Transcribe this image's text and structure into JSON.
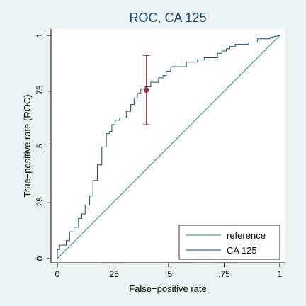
{
  "chart_data": {
    "type": "line",
    "title": "ROC, CA 125",
    "xlabel": "False−positive rate",
    "ylabel": "True−positive rate (ROC)",
    "xlim": [
      0,
      1
    ],
    "ylim": [
      0,
      1
    ],
    "x_ticks": [
      {
        "value": 0,
        "label": "0"
      },
      {
        "value": 0.25,
        "label": ".25"
      },
      {
        "value": 0.5,
        "label": ".5"
      },
      {
        "value": 0.75,
        "label": ".75"
      },
      {
        "value": 1,
        "label": "1"
      }
    ],
    "y_ticks": [
      {
        "value": 0,
        "label": "0"
      },
      {
        "value": 0.25,
        "label": ".25"
      },
      {
        "value": 0.5,
        "label": ".5"
      },
      {
        "value": 0.75,
        "label": ".75"
      },
      {
        "value": 1,
        "label": "1"
      }
    ],
    "grid": false,
    "legend_position": "bottom-right",
    "colors": {
      "background": "#eaf2f3",
      "plot_background": "#ffffff",
      "reference": "#2d8a6e",
      "roc": "#1a476f",
      "marker": "#90353b"
    },
    "series": [
      {
        "name": "reference",
        "x": [
          0,
          1
        ],
        "y": [
          0,
          1
        ]
      },
      {
        "name": "CA 125",
        "x": [
          0,
          0,
          0.01,
          0.01,
          0.04,
          0.04,
          0.055,
          0.055,
          0.075,
          0.075,
          0.095,
          0.095,
          0.11,
          0.11,
          0.125,
          0.125,
          0.145,
          0.145,
          0.16,
          0.16,
          0.18,
          0.18,
          0.2,
          0.2,
          0.22,
          0.22,
          0.235,
          0.235,
          0.245,
          0.245,
          0.26,
          0.26,
          0.28,
          0.28,
          0.31,
          0.31,
          0.33,
          0.33,
          0.345,
          0.345,
          0.36,
          0.36,
          0.375,
          0.375,
          0.395,
          0.395,
          0.42,
          0.42,
          0.455,
          0.455,
          0.475,
          0.475,
          0.49,
          0.49,
          0.51,
          0.51,
          0.58,
          0.58,
          0.63,
          0.63,
          0.66,
          0.66,
          0.72,
          0.72,
          0.74,
          0.74,
          0.76,
          0.76,
          0.775,
          0.775,
          0.8,
          0.8,
          0.86,
          0.86,
          0.9,
          0.9,
          0.955,
          0.955,
          1
        ],
        "y": [
          0,
          0.04,
          0.04,
          0.06,
          0.06,
          0.08,
          0.08,
          0.12,
          0.12,
          0.14,
          0.14,
          0.18,
          0.18,
          0.2,
          0.2,
          0.24,
          0.24,
          0.28,
          0.28,
          0.35,
          0.35,
          0.42,
          0.42,
          0.5,
          0.5,
          0.56,
          0.56,
          0.57,
          0.57,
          0.6,
          0.6,
          0.62,
          0.62,
          0.63,
          0.63,
          0.66,
          0.66,
          0.69,
          0.69,
          0.72,
          0.72,
          0.74,
          0.74,
          0.76,
          0.76,
          0.77,
          0.77,
          0.79,
          0.79,
          0.81,
          0.81,
          0.82,
          0.82,
          0.84,
          0.84,
          0.86,
          0.86,
          0.88,
          0.88,
          0.89,
          0.89,
          0.9,
          0.9,
          0.92,
          0.92,
          0.93,
          0.93,
          0.94,
          0.94,
          0.95,
          0.95,
          0.96,
          0.96,
          0.97,
          0.97,
          0.985,
          0.985,
          0.99,
          1
        ]
      }
    ],
    "point_estimate": {
      "x": 0.4,
      "y": 0.755,
      "ci": [
        0.6,
        0.91
      ]
    }
  }
}
